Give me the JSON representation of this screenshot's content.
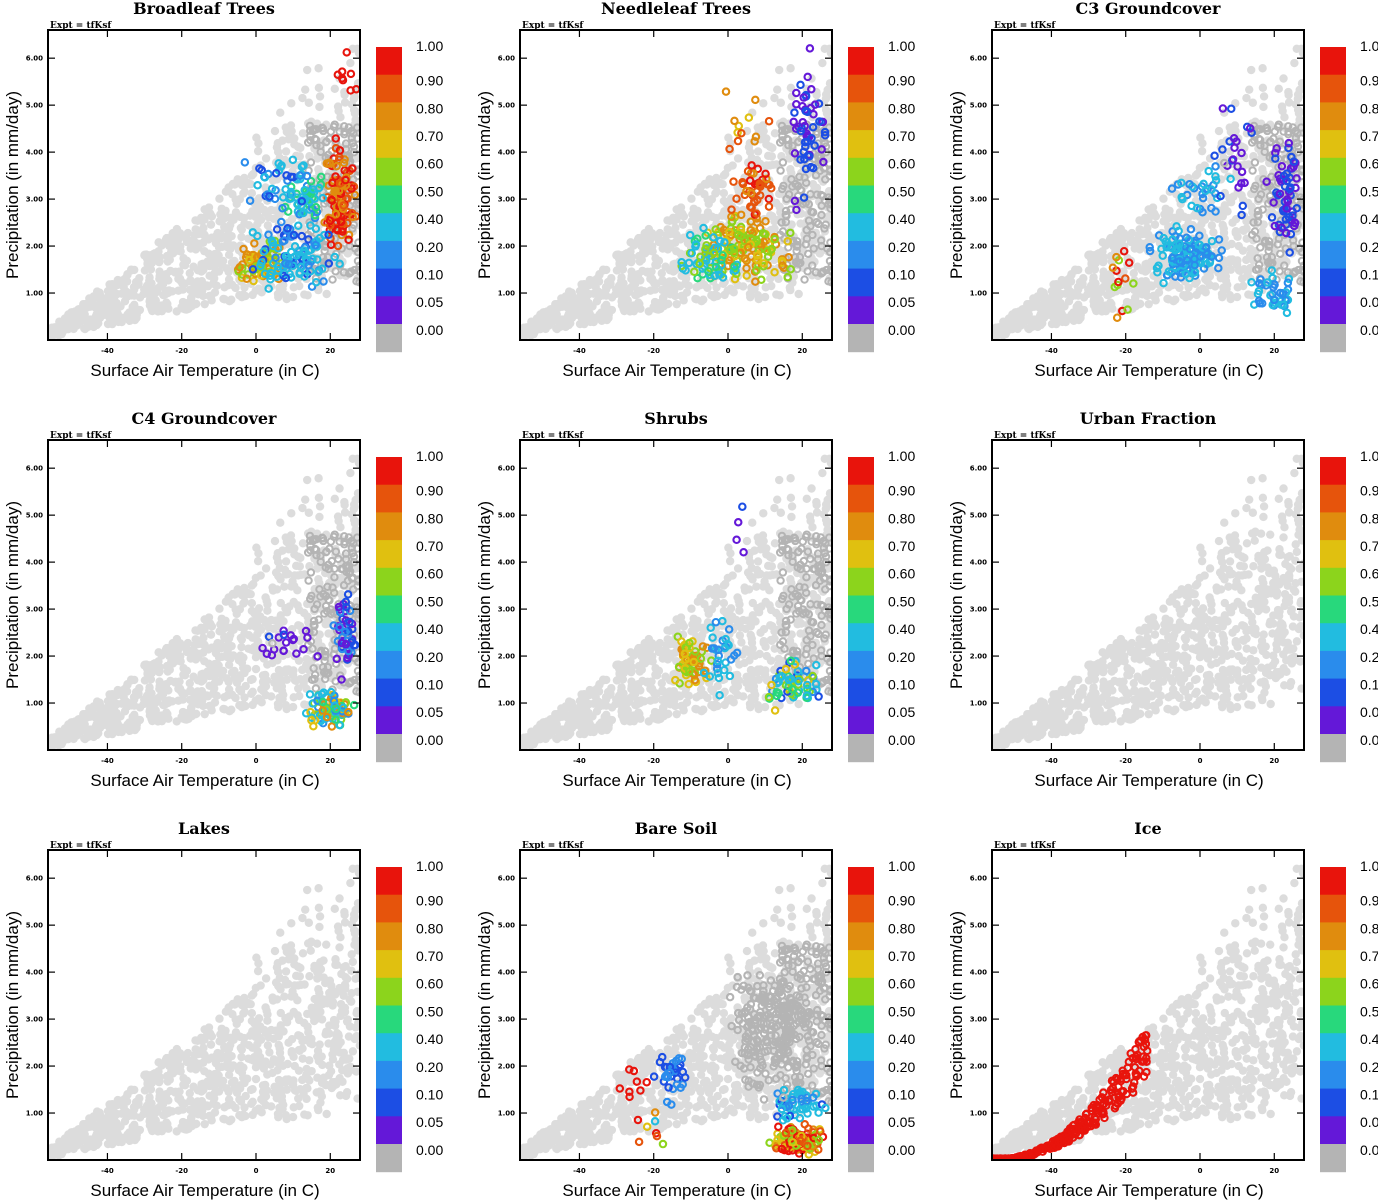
{
  "colors": {
    "background_points": "#dcdcdc",
    "zero_fraction_points": "#b4b4b4",
    "frame": "#000000"
  },
  "colorbar": {
    "labels": [
      "1.00",
      "0.90",
      "0.80",
      "0.70",
      "0.60",
      "0.50",
      "0.40",
      "0.20",
      "0.10",
      "0.05",
      "0.00"
    ],
    "colors": [
      "#e8140c",
      "#e6540c",
      "#e08c0e",
      "#e0c010",
      "#8cd41c",
      "#28d87c",
      "#22bce0",
      "#2a8cec",
      "#1c4ee4",
      "#6418d8",
      "#b4b4b4"
    ]
  },
  "chart_data": [
    {
      "type": "scatter",
      "title": "Broadleaf Trees",
      "expt_label": "Expt = tfKsf",
      "xlabel": "Surface Air Temperature (in C)",
      "ylabel": "Precipitation (in mm/day)",
      "xlim": [
        -56,
        28
      ],
      "ylim": [
        0,
        6.6
      ],
      "xticks": [
        "-40",
        "-20",
        "0",
        "20"
      ],
      "yticks": [
        "1.00",
        "2.00",
        "3.00",
        "4.00",
        "5.00",
        "6.00"
      ],
      "clusters": [
        {
          "x": [
            17,
            28
          ],
          "y": [
            1.4,
            4.6
          ],
          "value": [
            0.7,
            1.0
          ],
          "n": 120
        },
        {
          "x": [
            5,
            20
          ],
          "y": [
            2.2,
            4.0
          ],
          "value": [
            0.15,
            0.5
          ],
          "n": 60
        },
        {
          "x": [
            -7,
            10
          ],
          "y": [
            1.1,
            2.2
          ],
          "value": [
            0.5,
            0.8
          ],
          "n": 70
        },
        {
          "x": [
            -7,
            28
          ],
          "y": [
            0.8,
            2.8
          ],
          "value": [
            0.05,
            0.4
          ],
          "n": 110
        },
        {
          "x": [
            -8,
            18
          ],
          "y": [
            2.5,
            4.3
          ],
          "value": [
            0.05,
            0.3
          ],
          "n": 30
        },
        {
          "x": [
            18,
            28
          ],
          "y": [
            4.6,
            6.6
          ],
          "value": [
            0.9,
            1.0
          ],
          "n": 8
        }
      ]
    },
    {
      "type": "scatter",
      "title": "Needleleaf Trees",
      "expt_label": "Expt = tfKsf",
      "xlabel": "Surface Air Temperature (in C)",
      "ylabel": "Precipitation (in mm/day)",
      "xlim": [
        -56,
        28
      ],
      "ylim": [
        0,
        6.6
      ],
      "xticks": [
        "-40",
        "-20",
        "0",
        "20"
      ],
      "yticks": [
        "1.00",
        "2.00",
        "3.00",
        "4.00",
        "5.00",
        "6.00"
      ],
      "clusters": [
        {
          "x": [
            -10,
            20
          ],
          "y": [
            1.0,
            3.0
          ],
          "value": [
            0.5,
            0.8
          ],
          "n": 150
        },
        {
          "x": [
            0,
            15
          ],
          "y": [
            2.5,
            4.0
          ],
          "value": [
            0.75,
            0.95
          ],
          "n": 40
        },
        {
          "x": [
            -16,
            8
          ],
          "y": [
            1.0,
            2.5
          ],
          "value": [
            0.2,
            0.6
          ],
          "n": 60
        },
        {
          "x": [
            14,
            28
          ],
          "y": [
            2.6,
            6.6
          ],
          "value": [
            0.0,
            0.1
          ],
          "n": 55
        },
        {
          "x": [
            -5,
            12
          ],
          "y": [
            3.0,
            5.7
          ],
          "value": [
            0.6,
            0.9
          ],
          "n": 12
        }
      ]
    },
    {
      "type": "scatter",
      "title": "C3 Groundcover",
      "expt_label": "Expt = tfKsf",
      "xlabel": "Surface Air Temperature (in C)",
      "ylabel": "Precipitation (in mm/day)",
      "xlim": [
        -56,
        28
      ],
      "ylim": [
        0,
        6.6
      ],
      "xticks": [
        "-40",
        "-20",
        "0",
        "20"
      ],
      "yticks": [
        "1.00",
        "2.00",
        "3.00",
        "4.00",
        "5.00",
        "6.00"
      ],
      "clusters": [
        {
          "x": [
            -16,
            8
          ],
          "y": [
            1.0,
            2.6
          ],
          "value": [
            0.1,
            0.3
          ],
          "n": 140
        },
        {
          "x": [
            -10,
            10
          ],
          "y": [
            2.4,
            4.0
          ],
          "value": [
            0.1,
            0.3
          ],
          "n": 30
        },
        {
          "x": [
            10,
            28
          ],
          "y": [
            0.4,
            1.6
          ],
          "value": [
            0.1,
            0.4
          ],
          "n": 40
        },
        {
          "x": [
            18,
            28
          ],
          "y": [
            1.5,
            4.8
          ],
          "value": [
            0.0,
            0.1
          ],
          "n": 60
        },
        {
          "x": [
            -25,
            -16
          ],
          "y": [
            0.1,
            2.4
          ],
          "value": [
            0.5,
            1.0
          ],
          "n": 14
        },
        {
          "x": [
            0,
            20
          ],
          "y": [
            2.0,
            5.6
          ],
          "value": [
            0.0,
            0.1
          ],
          "n": 25
        }
      ]
    },
    {
      "type": "scatter",
      "title": "C4 Groundcover",
      "expt_label": "Expt = tfKsf",
      "xlabel": "Surface Air Temperature (in C)",
      "ylabel": "Precipitation (in mm/day)",
      "xlim": [
        -56,
        28
      ],
      "ylim": [
        0,
        6.6
      ],
      "xticks": [
        "-40",
        "-20",
        "0",
        "20"
      ],
      "yticks": [
        "1.00",
        "2.00",
        "3.00",
        "4.00",
        "5.00",
        "6.00"
      ],
      "clusters": [
        {
          "x": [
            12,
            28
          ],
          "y": [
            0.3,
            1.5
          ],
          "value": [
            0.1,
            0.8
          ],
          "n": 90
        },
        {
          "x": [
            20,
            28
          ],
          "y": [
            1.2,
            3.6
          ],
          "value": [
            0.0,
            0.15
          ],
          "n": 45
        },
        {
          "x": [
            -2,
            20
          ],
          "y": [
            1.8,
            2.8
          ],
          "value": [
            0.0,
            0.06
          ],
          "n": 20
        }
      ]
    },
    {
      "type": "scatter",
      "title": "Shrubs",
      "expt_label": "Expt = tfKsf",
      "xlabel": "Surface Air Temperature (in C)",
      "ylabel": "Precipitation (in mm/day)",
      "xlim": [
        -56,
        28
      ],
      "ylim": [
        0,
        6.6
      ],
      "xticks": [
        "-40",
        "-20",
        "0",
        "20"
      ],
      "yticks": [
        "1.00",
        "2.00",
        "3.00",
        "4.00",
        "5.00",
        "6.00"
      ],
      "clusters": [
        {
          "x": [
            -16,
            -4
          ],
          "y": [
            1.0,
            2.8
          ],
          "value": [
            0.5,
            0.8
          ],
          "n": 60
        },
        {
          "x": [
            -8,
            4
          ],
          "y": [
            1.0,
            3.4
          ],
          "value": [
            0.1,
            0.4
          ],
          "n": 30
        },
        {
          "x": [
            6,
            28
          ],
          "y": [
            0.7,
            2.2
          ],
          "value": [
            0.05,
            0.7
          ],
          "n": 60
        },
        {
          "x": [
            0,
            6
          ],
          "y": [
            3.5,
            5.8
          ],
          "value": [
            0.0,
            0.06
          ],
          "n": 4
        }
      ]
    },
    {
      "type": "scatter",
      "title": "Urban Fraction",
      "expt_label": "Expt = tfKsf",
      "xlabel": "Surface Air Temperature (in C)",
      "ylabel": "Precipitation (in mm/day)",
      "xlim": [
        -56,
        28
      ],
      "ylim": [
        0,
        6.6
      ],
      "xticks": [
        "-40",
        "-20",
        "0",
        "20"
      ],
      "yticks": [
        "1.00",
        "2.00",
        "3.00",
        "4.00",
        "5.00",
        "6.00"
      ],
      "clusters": []
    },
    {
      "type": "scatter",
      "title": "Lakes",
      "expt_label": "Expt = tfKsf",
      "xlabel": "Surface Air Temperature (in C)",
      "ylabel": "Precipitation (in mm/day)",
      "xlim": [
        -56,
        28
      ],
      "ylim": [
        0,
        6.6
      ],
      "xticks": [
        "-40",
        "-20",
        "0",
        "20"
      ],
      "yticks": [
        "1.00",
        "2.00",
        "3.00",
        "4.00",
        "5.00",
        "6.00"
      ],
      "clusters": []
    },
    {
      "type": "scatter",
      "title": "Bare Soil",
      "expt_label": "Expt = tfKsf",
      "xlabel": "Surface Air Temperature (in C)",
      "ylabel": "Precipitation (in mm/day)",
      "xlim": [
        -56,
        28
      ],
      "ylim": [
        0,
        6.6
      ],
      "xticks": [
        "-40",
        "-20",
        "0",
        "20"
      ],
      "yticks": [
        "1.00",
        "2.00",
        "3.00",
        "4.00",
        "5.00",
        "6.00"
      ],
      "clusters": [
        {
          "x": [
            10,
            28
          ],
          "y": [
            0.05,
            0.8
          ],
          "value": [
            0.5,
            1.0
          ],
          "n": 130
        },
        {
          "x": [
            10,
            28
          ],
          "y": [
            0.6,
            1.7
          ],
          "value": [
            0.05,
            0.4
          ],
          "n": 50
        },
        {
          "x": [
            -22,
            -8
          ],
          "y": [
            1.1,
            2.6
          ],
          "value": [
            0.05,
            0.15
          ],
          "n": 35
        },
        {
          "x": [
            -36,
            -18
          ],
          "y": [
            1.2,
            2.1
          ],
          "value": [
            0.9,
            1.0
          ],
          "n": 8
        },
        {
          "x": [
            -26,
            -16
          ],
          "y": [
            0.1,
            1.3
          ],
          "value": [
            0.3,
            1.0
          ],
          "n": 8
        },
        {
          "x": [
            -4,
            26
          ],
          "y": [
            1.0,
            4.8
          ],
          "value": [
            0.0,
            0.0
          ],
          "n": 220
        }
      ]
    },
    {
      "type": "scatter",
      "title": "Ice",
      "expt_label": "Expt = tfKsf",
      "xlabel": "Surface Air Temperature (in C)",
      "ylabel": "Precipitation (in mm/day)",
      "xlim": [
        -56,
        28
      ],
      "ylim": [
        0,
        6.6
      ],
      "xticks": [
        "-40",
        "-20",
        "0",
        "20"
      ],
      "yticks": [
        "1.00",
        "2.00",
        "3.00",
        "4.00",
        "5.00",
        "6.00"
      ],
      "clusters": [
        {
          "x": [
            -56,
            -14
          ],
          "y": [
            0.0,
            2.8
          ],
          "value": [
            0.95,
            1.0
          ],
          "n": 260,
          "band": true
        }
      ]
    }
  ]
}
